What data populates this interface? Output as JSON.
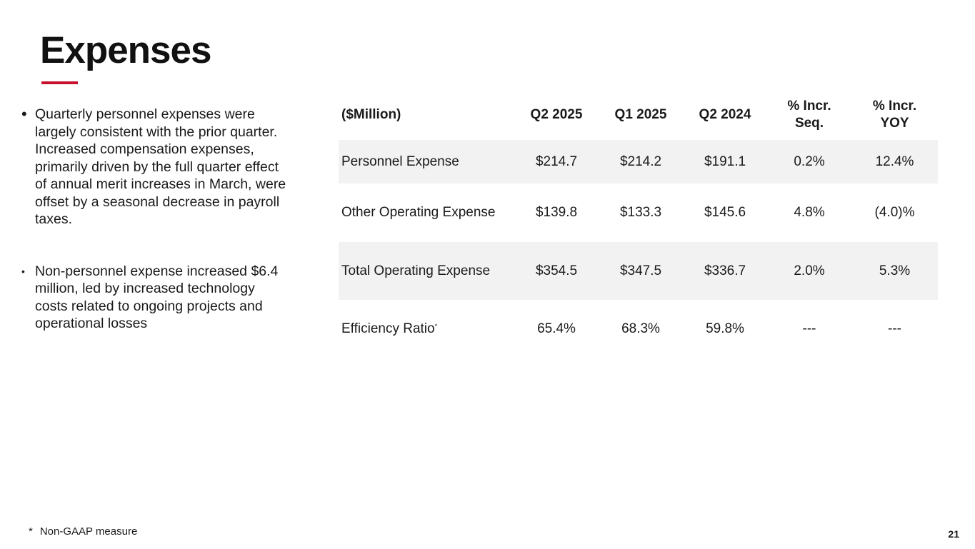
{
  "slide": {
    "title": "Expenses",
    "page_number": "21",
    "accent_color": "#c8102e"
  },
  "bullets": [
    {
      "symbol": "•",
      "text": "Quarterly personnel expenses were largely consistent with the prior quarter. Increased compensation expenses, primarily driven by the full quarter effect of annual merit increases in March, were offset by a seasonal decrease in payroll taxes."
    },
    {
      "symbol": "•",
      "text": "Non-personnel expense increased $6.4 million, led by increased technology costs related to ongoing projects and operational losses"
    }
  ],
  "table": {
    "headers": [
      "($Million)",
      "Q2 2025",
      "Q1 2025",
      "Q2 2024",
      "% Incr.",
      "Seq.",
      "% Incr.",
      "YOY"
    ],
    "rows": [
      {
        "label": "Personnel Expense",
        "cells": [
          "$214.7",
          "$214.2",
          "$191.1",
          "0.2%",
          "12.4%"
        ]
      },
      {
        "label": "Other Operating Expense",
        "cells": [
          "$139.8",
          "$133.3",
          "$145.6",
          "4.8%",
          "(4.0)%"
        ]
      },
      {
        "label": "Total Operating Expense",
        "cells": [
          "$354.5",
          "$347.5",
          "$336.7",
          "2.0%",
          "5.3%"
        ]
      },
      {
        "label": "Efficiency Ratio",
        "marker": "*",
        "cells": [
          "65.4%",
          "68.3%",
          "59.8%",
          "---",
          "---"
        ]
      }
    ]
  },
  "footnote": {
    "marker": "*",
    "text": "Non-GAAP measure"
  }
}
